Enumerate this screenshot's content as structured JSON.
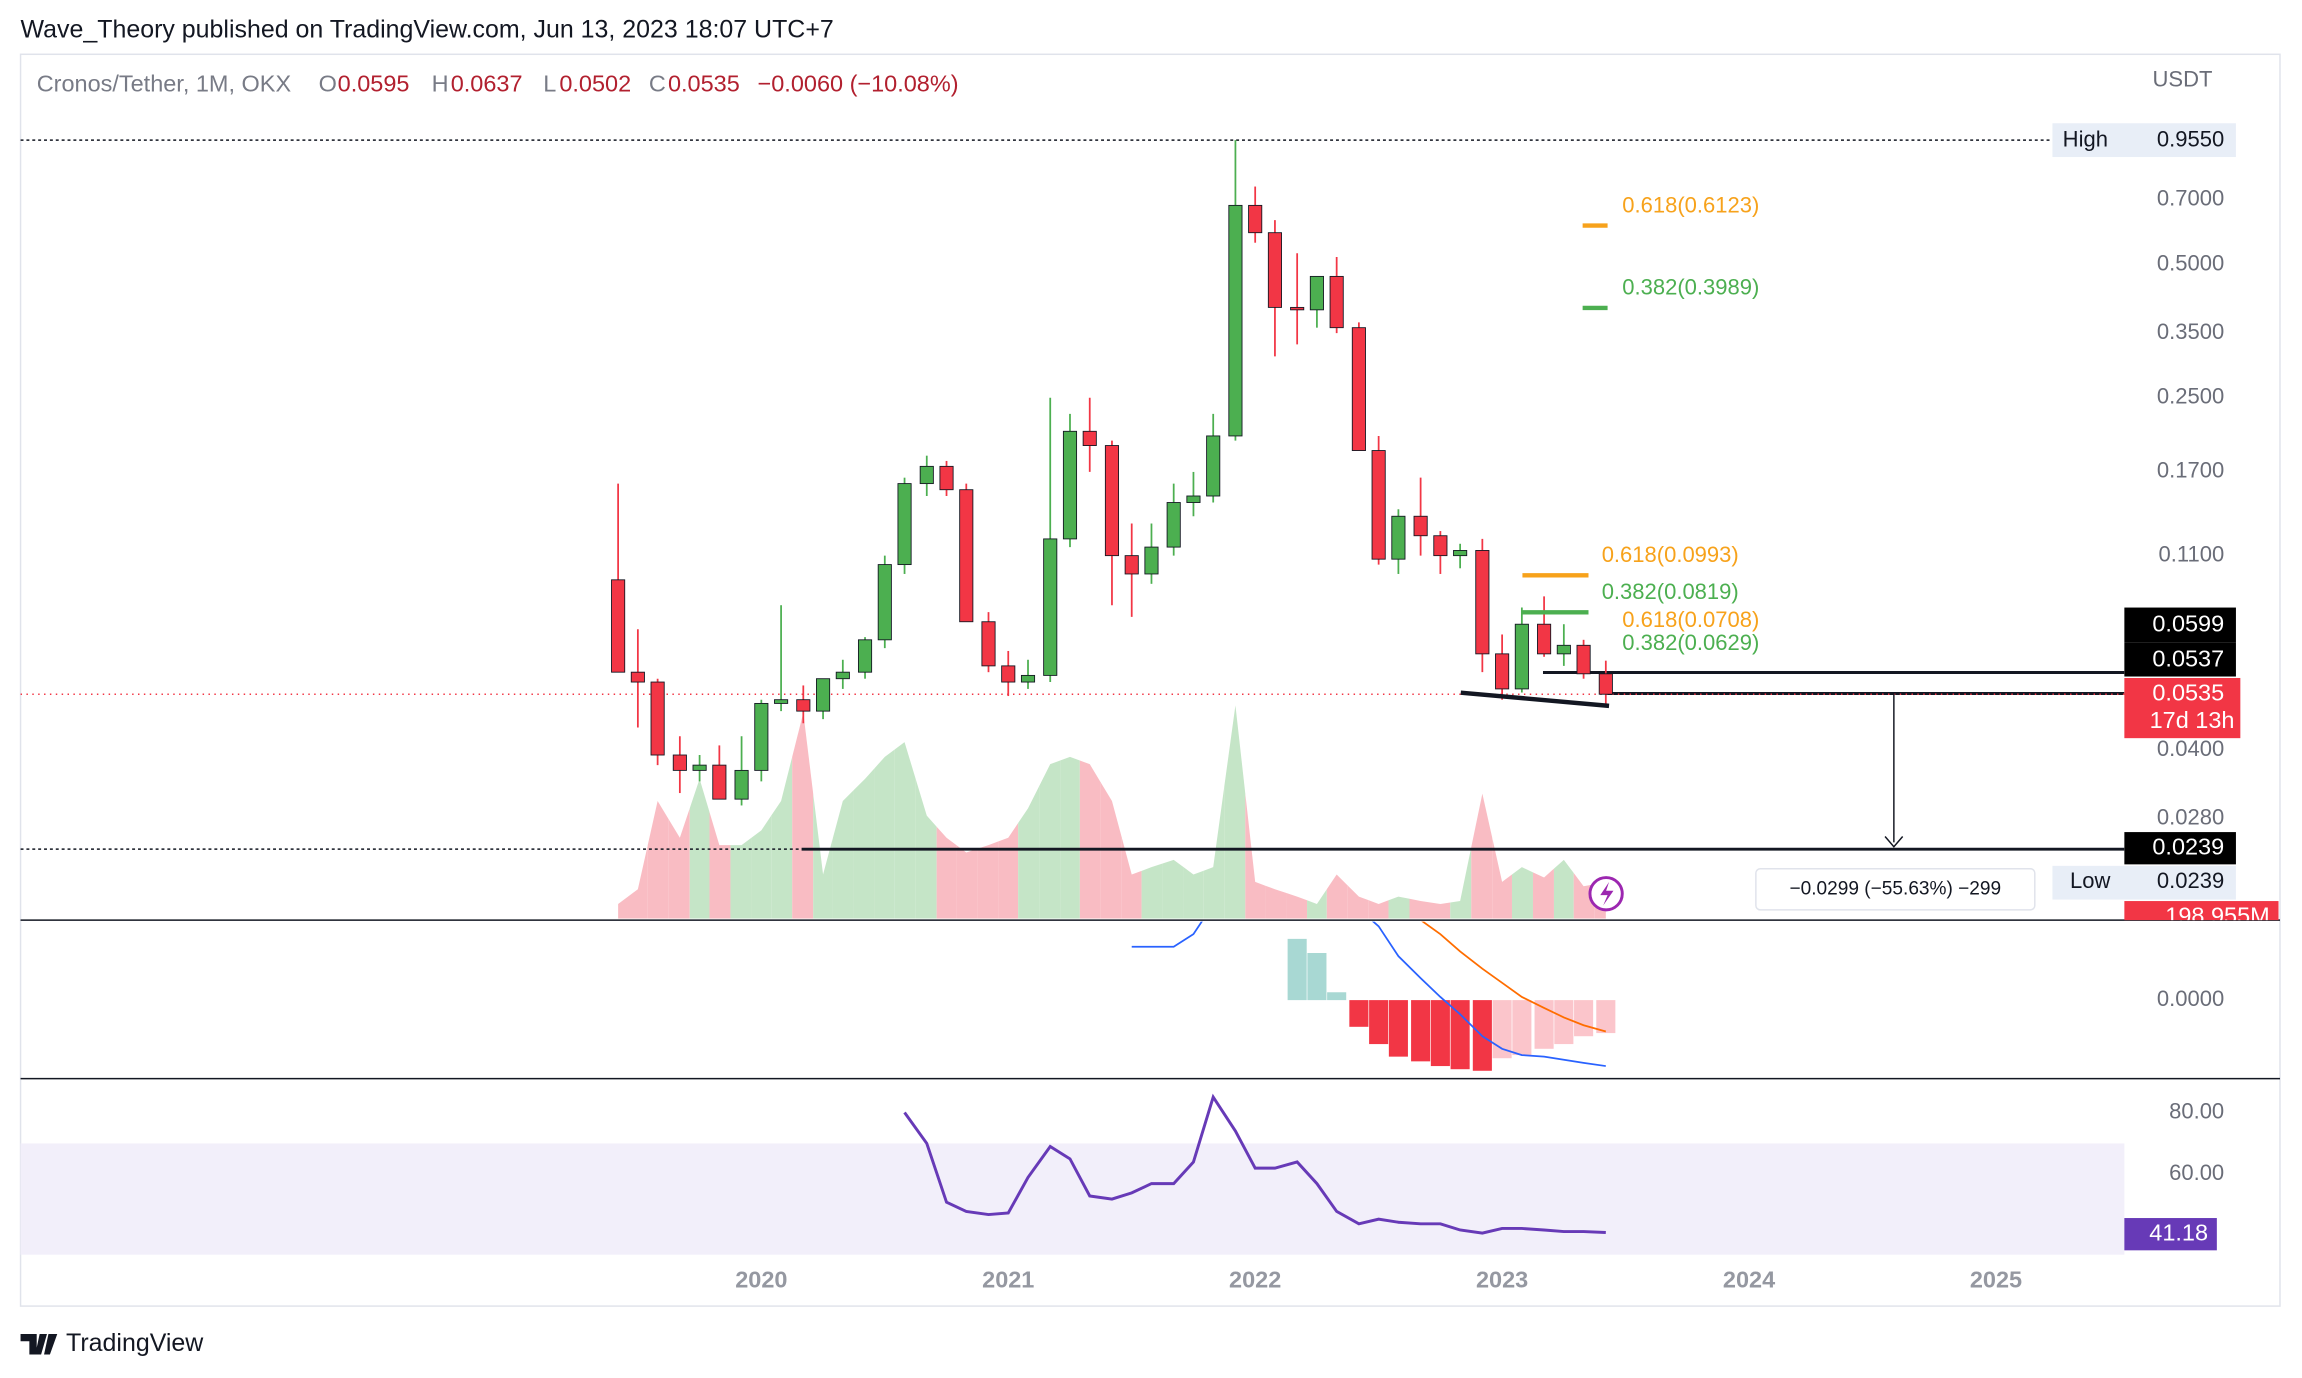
{
  "header": {
    "publisher": "Wave_Theory published on TradingView.com, Jun 13, 2023 18:07 UTC+7"
  },
  "footer": {
    "brand": "TradingView"
  },
  "chart_data": [
    {
      "type": "candlestick",
      "title": "Cronos/Tether, 1M, OKX",
      "legend": {
        "items": [
          {
            "key": "O",
            "value": "0.0595"
          },
          {
            "key": "H",
            "value": "0.0637"
          },
          {
            "key": "L",
            "value": "0.0502"
          },
          {
            "key": "C",
            "value": "0.0535"
          }
        ],
        "change": "−0.0060 (−10.08%)"
      },
      "unit": "USDT",
      "log_scale": true,
      "colors": {
        "up": "#4caf50",
        "down": "#f23645",
        "volume_up": "#c5e5c7",
        "volume_down": "#f9bcc3"
      },
      "x": [
        2019.42,
        2019.5,
        2019.58,
        2019.67,
        2019.75,
        2019.83,
        2019.92,
        2020,
        2020.08,
        2020.17,
        2020.25,
        2020.33,
        2020.42,
        2020.5,
        2020.58,
        2020.67,
        2020.75,
        2020.83,
        2020.92,
        2021,
        2021.08,
        2021.17,
        2021.25,
        2021.33,
        2021.42,
        2021.5,
        2021.58,
        2021.67,
        2021.75,
        2021.83,
        2021.92,
        2022,
        2022.08,
        2022.17,
        2022.25,
        2022.33,
        2022.42,
        2022.5,
        2022.58,
        2022.67,
        2022.75,
        2022.83,
        2022.92,
        2023,
        2023.08,
        2023.17,
        2023.25,
        2023.33,
        2023.42
      ],
      "open": [
        0.097,
        0.06,
        0.057,
        0.039,
        0.036,
        0.037,
        0.031,
        0.036,
        0.051,
        0.052,
        0.049,
        0.058,
        0.06,
        0.071,
        0.105,
        0.16,
        0.175,
        0.155,
        0.078,
        0.062,
        0.057,
        0.059,
        0.12,
        0.21,
        0.195,
        0.11,
        0.1,
        0.115,
        0.145,
        0.15,
        0.205,
        0.68,
        0.59,
        0.4,
        0.395,
        0.47,
        0.36,
        0.19,
        0.108,
        0.135,
        0.122,
        0.11,
        0.113,
        0.066,
        0.055,
        0.077,
        0.066,
        0.069,
        0.0595
      ],
      "high": [
        0.16,
        0.075,
        0.058,
        0.043,
        0.039,
        0.041,
        0.043,
        0.052,
        0.085,
        0.056,
        0.058,
        0.064,
        0.072,
        0.11,
        0.165,
        0.185,
        0.18,
        0.16,
        0.082,
        0.067,
        0.064,
        0.25,
        0.23,
        0.25,
        0.2,
        0.13,
        0.13,
        0.16,
        0.17,
        0.23,
        0.955,
        0.75,
        0.63,
        0.53,
        0.47,
        0.52,
        0.37,
        0.205,
        0.14,
        0.165,
        0.125,
        0.117,
        0.12,
        0.073,
        0.084,
        0.089,
        0.077,
        0.071,
        0.0637
      ],
      "low": [
        0.06,
        0.045,
        0.037,
        0.032,
        0.034,
        0.031,
        0.03,
        0.034,
        0.049,
        0.046,
        0.047,
        0.055,
        0.058,
        0.068,
        0.1,
        0.15,
        0.15,
        0.078,
        0.06,
        0.053,
        0.055,
        0.057,
        0.115,
        0.17,
        0.085,
        0.08,
        0.095,
        0.11,
        0.135,
        0.145,
        0.2,
        0.56,
        0.31,
        0.33,
        0.36,
        0.35,
        0.19,
        0.105,
        0.1,
        0.11,
        0.1,
        0.103,
        0.06,
        0.052,
        0.054,
        0.065,
        0.062,
        0.058,
        0.0502
      ],
      "close": [
        0.06,
        0.057,
        0.039,
        0.036,
        0.037,
        0.031,
        0.036,
        0.051,
        0.052,
        0.049,
        0.058,
        0.06,
        0.071,
        0.105,
        0.16,
        0.175,
        0.155,
        0.078,
        0.062,
        0.057,
        0.059,
        0.12,
        0.21,
        0.195,
        0.11,
        0.1,
        0.115,
        0.145,
        0.15,
        0.205,
        0.68,
        0.59,
        0.4,
        0.395,
        0.47,
        0.36,
        0.19,
        0.108,
        0.135,
        0.122,
        0.11,
        0.113,
        0.066,
        0.055,
        0.077,
        0.066,
        0.069,
        0.0595,
        0.0535
      ],
      "volume": {
        "values": [
          80,
          160,
          640,
          440,
          760,
          400,
          400,
          480,
          640,
          1120,
          240,
          640,
          760,
          880,
          960,
          560,
          440,
          360,
          400,
          440,
          600,
          840,
          880,
          840,
          640,
          240,
          280,
          320,
          240,
          280,
          1160,
          200,
          160,
          120,
          80,
          240,
          120,
          80,
          120,
          96,
          80,
          96,
          680,
          200,
          280,
          224,
          320,
          176,
          198.955
        ],
        "value_labels": [
          null,
          null,
          null,
          null,
          null,
          null,
          null,
          null,
          null,
          null,
          null,
          null,
          null,
          null,
          null,
          null,
          null,
          null,
          null,
          null,
          null,
          null,
          null,
          null,
          null,
          null,
          null,
          null,
          null,
          null,
          null,
          null,
          null,
          null,
          null,
          null,
          null,
          null,
          null,
          null,
          null,
          null,
          null,
          null,
          null,
          null,
          null,
          null,
          "198.955M"
        ],
        "ylim": [
          0,
          4700
        ]
      },
      "xlim": [
        2017,
        2025.52
      ],
      "xticks": [
        2020,
        2021,
        2022,
        2023,
        2024,
        2025
      ],
      "ylim": [
        0.01665,
        1.492
      ],
      "yticks": [
        {
          "value": 0.7,
          "label": "0.7000"
        },
        {
          "value": 0.5,
          "label": "0.5000"
        },
        {
          "value": 0.35,
          "label": "0.3500"
        },
        {
          "value": 0.25,
          "label": "0.2500"
        },
        {
          "value": 0.17,
          "label": "0.1700"
        },
        {
          "value": 0.11,
          "label": "0.1100"
        },
        {
          "value": 0.04,
          "label": "0.0400"
        },
        {
          "value": 0.028,
          "label": "0.0280"
        }
      ],
      "high_label": "High",
      "low_label": "Low",
      "tags": [
        {
          "value": 0.955,
          "label": "0.9550"
        },
        {
          "value": 0.0599,
          "label": "0.0599"
        },
        {
          "value": 0.0537,
          "label": "0.0537"
        },
        {
          "value": 0.0535,
          "label": "0.0535"
        },
        {
          "value": 0.0239,
          "label": "0.0239"
        },
        {
          "value": 0.0239,
          "label": "0.0239"
        }
      ],
      "countdown": "17d 13h",
      "measure": "−0.0299 (−55.63%) −299",
      "fib": [
        {
          "label": "0.618(0.6123)",
          "value": 0.6123,
          "color": "#f7a21b"
        },
        {
          "label": "0.382(0.3989)",
          "value": 0.3989,
          "color": "#4caf50"
        },
        {
          "label": "0.618(0.0993)",
          "value": 0.0993,
          "color": "#f7a21b"
        },
        {
          "label": "0.382(0.0819)",
          "value": 0.0819,
          "color": "#4caf50"
        },
        {
          "label": "0.618(0.0708)",
          "value": 0.0708,
          "color": "#f7a21b"
        },
        {
          "label": "0.382(0.0629)",
          "value": 0.0629,
          "color": "#4caf50"
        }
      ]
    },
    {
      "type": "macd",
      "histogram": [
        null,
        null,
        null,
        null,
        null,
        null,
        null,
        null,
        null,
        null,
        null,
        null,
        null,
        null,
        null,
        null,
        null,
        null,
        null,
        null,
        null,
        null,
        null,
        null,
        null,
        null,
        null,
        null,
        null,
        null,
        null,
        null,
        null,
        0.039,
        0.03,
        0.005,
        -0.017,
        -0.028,
        -0.036,
        -0.039,
        -0.042,
        -0.044,
        -0.045,
        -0.037,
        -0.035,
        -0.031,
        -0.028,
        -0.023,
        -0.021
      ],
      "macd": [
        null,
        null,
        null,
        null,
        null,
        null,
        null,
        null,
        null,
        null,
        null,
        null,
        null,
        null,
        null,
        null,
        null,
        null,
        null,
        null,
        null,
        null,
        null,
        null,
        null,
        0.034,
        0.034,
        0.034,
        0.042,
        0.061,
        0.084,
        0.093,
        0.093,
        0.089,
        0.079,
        0.07,
        0.058,
        0.047,
        0.028,
        0.014,
        0.002,
        -0.009,
        -0.023,
        -0.031,
        -0.035,
        -0.036,
        -0.038,
        -0.04,
        -0.042
      ],
      "signal": [
        null,
        null,
        null,
        null,
        null,
        null,
        null,
        null,
        null,
        null,
        null,
        null,
        null,
        null,
        null,
        null,
        null,
        null,
        null,
        null,
        null,
        null,
        null,
        null,
        null,
        null,
        null,
        null,
        null,
        null,
        null,
        null,
        null,
        null,
        null,
        null,
        null,
        null,
        null,
        0.051,
        0.042,
        0.031,
        0.02,
        0.011,
        0.002,
        -0.005,
        -0.011,
        -0.016,
        -0.02
      ],
      "colors": {
        "macd": "#2962ff",
        "signal": "#ff6d00",
        "positive": "#a8d8d3",
        "falling": "#f23645",
        "rising": "#fbc5cb"
      },
      "ylim": [
        -0.05,
        0.05
      ],
      "yticks": [
        {
          "value": 0,
          "label": "0.0000"
        }
      ]
    },
    {
      "type": "rsi",
      "values": [
        null,
        null,
        null,
        null,
        null,
        null,
        null,
        null,
        null,
        null,
        null,
        null,
        null,
        null,
        80,
        70,
        51,
        48,
        47,
        47.5,
        59,
        69,
        65,
        53,
        52,
        54,
        57,
        57,
        64,
        85,
        74,
        62,
        62,
        64,
        57,
        48,
        44,
        45.5,
        44.5,
        44,
        44,
        42,
        41,
        42.5,
        42.5,
        42,
        41.5,
        41.5,
        41.18
      ],
      "value_labels": [
        null,
        null,
        null,
        null,
        null,
        null,
        null,
        null,
        null,
        null,
        null,
        null,
        null,
        null,
        null,
        null,
        null,
        null,
        null,
        null,
        null,
        null,
        null,
        null,
        null,
        null,
        null,
        null,
        null,
        null,
        null,
        null,
        null,
        null,
        null,
        null,
        null,
        null,
        null,
        null,
        null,
        null,
        null,
        null,
        null,
        null,
        null,
        null,
        "41.18"
      ],
      "color": "#673ab7",
      "band": [
        30,
        70
      ],
      "band_color": "#f2effa",
      "ylim": [
        34,
        90
      ],
      "yticks": [
        {
          "value": 80,
          "label": "80.00"
        },
        {
          "value": 60,
          "label": "60.00"
        }
      ]
    }
  ]
}
